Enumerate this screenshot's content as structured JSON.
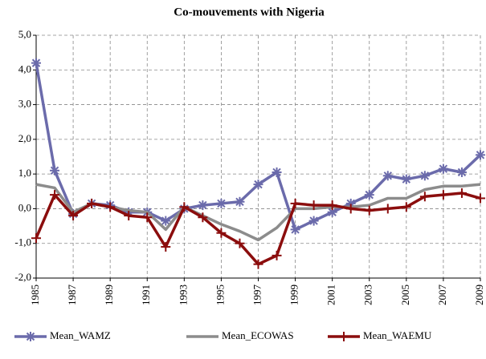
{
  "chart_data": {
    "type": "line",
    "title": "Co-mouvements with Nigeria",
    "x": [
      1985,
      1986,
      1987,
      1988,
      1989,
      1990,
      1991,
      1992,
      1993,
      1994,
      1995,
      1996,
      1997,
      1998,
      1999,
      2000,
      2001,
      2002,
      2003,
      2004,
      2005,
      2006,
      2007,
      2008,
      2009
    ],
    "xlim": [
      1985,
      2009
    ],
    "xticks": [
      1985,
      1987,
      1989,
      1991,
      1993,
      1995,
      1997,
      1999,
      2001,
      2003,
      2005,
      2007,
      2009
    ],
    "ylim": [
      -2,
      5
    ],
    "yticks": [
      {
        "value": -2,
        "label": "-2,0"
      },
      {
        "value": -1,
        "label": "-1,0"
      },
      {
        "value": 0,
        "label": "0,0"
      },
      {
        "value": 1,
        "label": "1,0"
      },
      {
        "value": 2,
        "label": "2,0"
      },
      {
        "value": 3,
        "label": "3,0"
      },
      {
        "value": 4,
        "label": "4,0"
      },
      {
        "value": 5,
        "label": "5,0"
      }
    ],
    "grid": true,
    "legend": "bottom",
    "series": [
      {
        "name": "Mean_WAMZ",
        "color": "#6b6bab",
        "marker": "star",
        "values": [
          4.2,
          1.1,
          -0.15,
          0.15,
          0.1,
          -0.1,
          -0.1,
          -0.35,
          0.0,
          0.1,
          0.15,
          0.2,
          0.7,
          1.05,
          -0.6,
          -0.35,
          -0.1,
          0.15,
          0.4,
          0.95,
          0.85,
          0.95,
          1.15,
          1.05,
          1.55
        ]
      },
      {
        "name": "Mean_ECOWAS",
        "color": "#8c8c8c",
        "marker": null,
        "values": [
          0.7,
          0.6,
          -0.1,
          0.15,
          0.05,
          -0.05,
          -0.1,
          -0.6,
          0.05,
          -0.2,
          -0.45,
          -0.65,
          -0.9,
          -0.55,
          0.0,
          0.0,
          0.05,
          0.05,
          0.1,
          0.3,
          0.3,
          0.55,
          0.65,
          0.65,
          0.7
        ]
      },
      {
        "name": "Mean_WAEMU",
        "color": "#8b0d0d",
        "marker": "plus",
        "values": [
          -0.85,
          0.4,
          -0.2,
          0.15,
          0.05,
          -0.2,
          -0.25,
          -1.1,
          0.05,
          -0.25,
          -0.7,
          -1.0,
          -1.6,
          -1.35,
          0.15,
          0.1,
          0.1,
          0.0,
          -0.05,
          0.0,
          0.05,
          0.35,
          0.4,
          0.45,
          0.3
        ]
      }
    ]
  }
}
